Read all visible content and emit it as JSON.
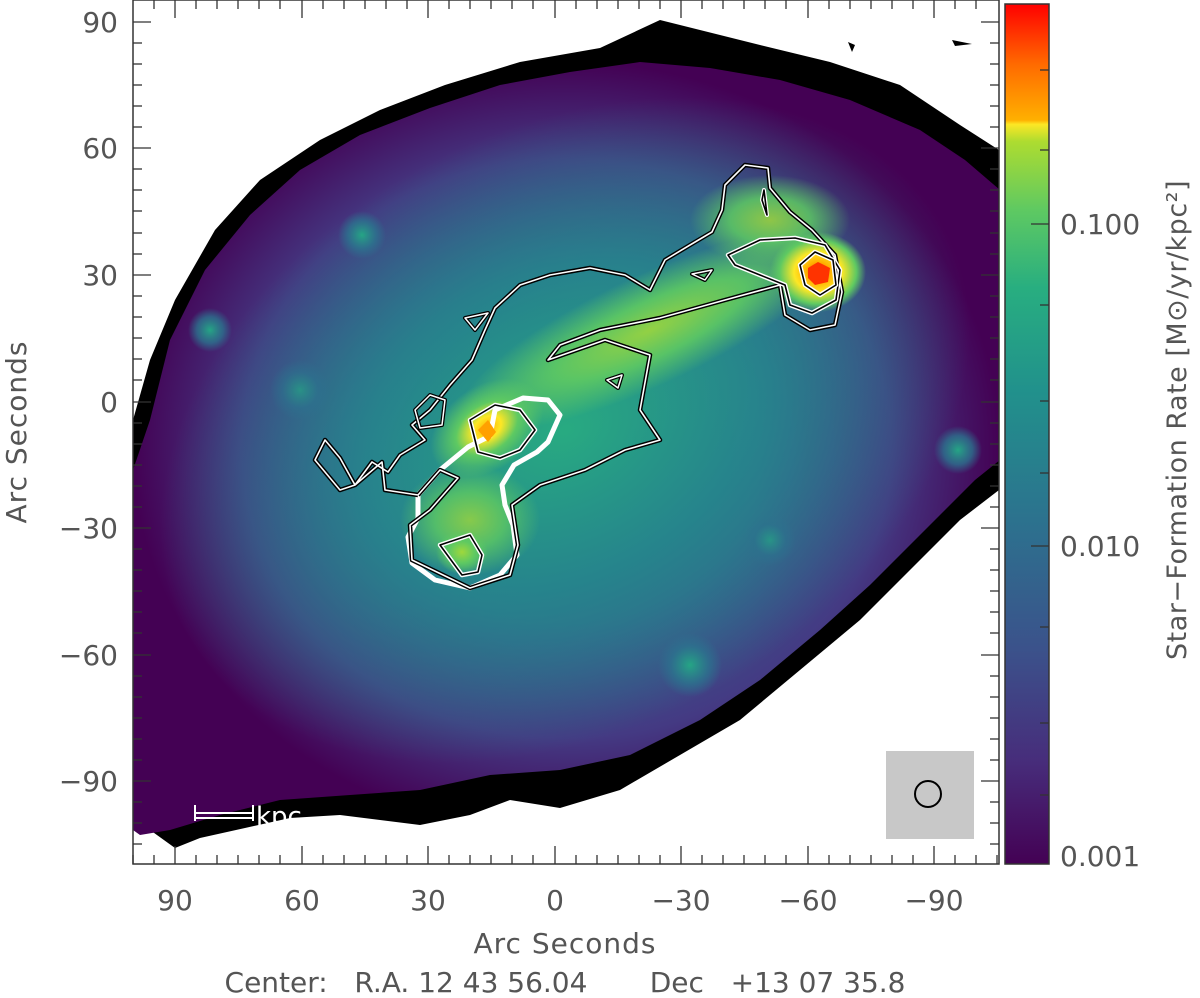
{
  "chart_data": {
    "type": "heatmap",
    "title": "",
    "xlabel": "Arc Seconds",
    "ylabel": "Arc Seconds",
    "xlim": [
      100,
      -105
    ],
    "ylim": [
      -109,
      95
    ],
    "x_ticks": [
      90,
      60,
      30,
      0,
      -30,
      -60,
      -90
    ],
    "x_tick_labels": [
      "90",
      "60",
      "30",
      "0",
      "−30",
      "−60",
      "−90"
    ],
    "y_ticks": [
      90,
      60,
      30,
      0,
      -30,
      -60,
      -90
    ],
    "y_tick_labels": [
      "90",
      "60",
      "30",
      "0",
      "−30",
      "−60",
      "−90"
    ],
    "colorbar": {
      "label": "Star−Formation Rate [M⊙/yr/kpc²]",
      "scale": "log",
      "range": [
        0.001,
        0.5
      ],
      "ticks": [
        0.001,
        0.01,
        0.1
      ],
      "tick_labels": [
        "0.001",
        "0.010",
        "0.100"
      ]
    },
    "colorscale": [
      "#440154",
      "#3b528b",
      "#21918c",
      "#5ec962",
      "#fde725",
      "#ff7f00",
      "#ff0000"
    ],
    "peaks": [
      {
        "x": 5,
        "y": -7,
        "value": 0.15
      },
      {
        "x": -63,
        "y": 31,
        "value": 0.3
      },
      {
        "x": 21,
        "y": -36,
        "value": 0.06
      },
      {
        "x": -30,
        "y": -62,
        "value": 0.012
      }
    ],
    "annotations": {
      "scale_bar_label": "kpc",
      "center_text": "Center:   R.A. 12 43 56.04       Dec   +13 07 35.8"
    }
  }
}
